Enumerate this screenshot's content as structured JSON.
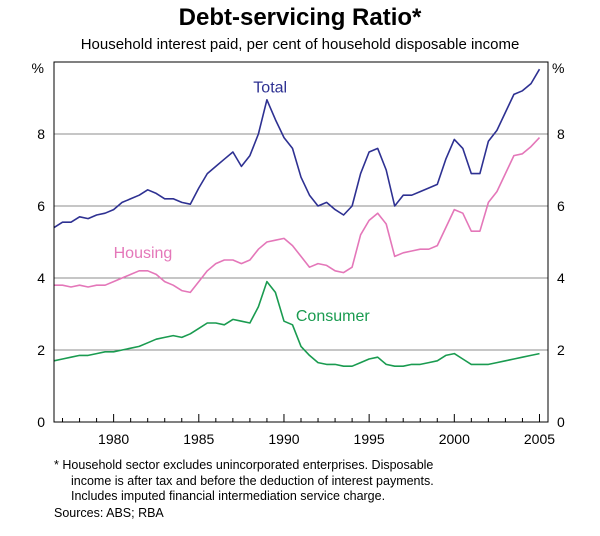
{
  "chart_data": {
    "type": "line",
    "title": "Debt-servicing Ratio*",
    "subtitle": "Household interest paid, per cent of household disposable income",
    "ylabel_left": "%",
    "ylabel_right": "%",
    "ylim": [
      0,
      10
    ],
    "yticks": [
      "0",
      "2",
      "4",
      "6",
      "8"
    ],
    "xlim": [
      1976.5,
      2005.5
    ],
    "xticks": [
      "1980",
      "1985",
      "1990",
      "1995",
      "2000",
      "2005"
    ],
    "grid": "horizontal",
    "series": [
      {
        "name": "Total",
        "color": "#2e3192",
        "points": [
          [
            1976.5,
            5.4
          ],
          [
            1977,
            5.55
          ],
          [
            1977.5,
            5.55
          ],
          [
            1978,
            5.7
          ],
          [
            1978.5,
            5.65
          ],
          [
            1979,
            5.75
          ],
          [
            1979.5,
            5.8
          ],
          [
            1980,
            5.9
          ],
          [
            1980.5,
            6.1
          ],
          [
            1981,
            6.2
          ],
          [
            1981.5,
            6.3
          ],
          [
            1982,
            6.45
          ],
          [
            1982.5,
            6.35
          ],
          [
            1983,
            6.2
          ],
          [
            1983.5,
            6.2
          ],
          [
            1984,
            6.1
          ],
          [
            1984.5,
            6.05
          ],
          [
            1985,
            6.5
          ],
          [
            1985.5,
            6.9
          ],
          [
            1986,
            7.1
          ],
          [
            1986.5,
            7.3
          ],
          [
            1987,
            7.5
          ],
          [
            1987.5,
            7.1
          ],
          [
            1988,
            7.4
          ],
          [
            1988.5,
            8.0
          ],
          [
            1989,
            8.95
          ],
          [
            1989.5,
            8.4
          ],
          [
            1990,
            7.9
          ],
          [
            1990.5,
            7.6
          ],
          [
            1991,
            6.8
          ],
          [
            1991.5,
            6.3
          ],
          [
            1992,
            6.0
          ],
          [
            1992.5,
            6.1
          ],
          [
            1993,
            5.9
          ],
          [
            1993.5,
            5.75
          ],
          [
            1994,
            6.0
          ],
          [
            1994.5,
            6.9
          ],
          [
            1995,
            7.5
          ],
          [
            1995.5,
            7.6
          ],
          [
            1996,
            7.0
          ],
          [
            1996.5,
            6.0
          ],
          [
            1997,
            6.3
          ],
          [
            1997.5,
            6.3
          ],
          [
            1998,
            6.4
          ],
          [
            1998.5,
            6.5
          ],
          [
            1999,
            6.6
          ],
          [
            1999.5,
            7.3
          ],
          [
            2000,
            7.85
          ],
          [
            2000.5,
            7.6
          ],
          [
            2001,
            6.9
          ],
          [
            2001.5,
            6.9
          ],
          [
            2002,
            7.8
          ],
          [
            2002.5,
            8.1
          ],
          [
            2003,
            8.6
          ],
          [
            2003.5,
            9.1
          ],
          [
            2004,
            9.2
          ],
          [
            2004.5,
            9.4
          ],
          [
            2005,
            9.8
          ]
        ]
      },
      {
        "name": "Housing",
        "color": "#e477b9",
        "points": [
          [
            1976.5,
            3.8
          ],
          [
            1977,
            3.8
          ],
          [
            1977.5,
            3.75
          ],
          [
            1978,
            3.8
          ],
          [
            1978.5,
            3.75
          ],
          [
            1979,
            3.8
          ],
          [
            1979.5,
            3.8
          ],
          [
            1980,
            3.9
          ],
          [
            1980.5,
            4.0
          ],
          [
            1981,
            4.1
          ],
          [
            1981.5,
            4.2
          ],
          [
            1982,
            4.2
          ],
          [
            1982.5,
            4.1
          ],
          [
            1983,
            3.9
          ],
          [
            1983.5,
            3.8
          ],
          [
            1984,
            3.65
          ],
          [
            1984.5,
            3.6
          ],
          [
            1985,
            3.9
          ],
          [
            1985.5,
            4.2
          ],
          [
            1986,
            4.4
          ],
          [
            1986.5,
            4.5
          ],
          [
            1987,
            4.5
          ],
          [
            1987.5,
            4.4
          ],
          [
            1988,
            4.5
          ],
          [
            1988.5,
            4.8
          ],
          [
            1989,
            5.0
          ],
          [
            1989.5,
            5.05
          ],
          [
            1990,
            5.1
          ],
          [
            1990.5,
            4.9
          ],
          [
            1991,
            4.6
          ],
          [
            1991.5,
            4.3
          ],
          [
            1992,
            4.4
          ],
          [
            1992.5,
            4.35
          ],
          [
            1993,
            4.2
          ],
          [
            1993.5,
            4.15
          ],
          [
            1994,
            4.3
          ],
          [
            1994.5,
            5.2
          ],
          [
            1995,
            5.6
          ],
          [
            1995.5,
            5.8
          ],
          [
            1996,
            5.5
          ],
          [
            1996.5,
            4.6
          ],
          [
            1997,
            4.7
          ],
          [
            1997.5,
            4.75
          ],
          [
            1998,
            4.8
          ],
          [
            1998.5,
            4.8
          ],
          [
            1999,
            4.9
          ],
          [
            1999.5,
            5.4
          ],
          [
            2000,
            5.9
          ],
          [
            2000.5,
            5.8
          ],
          [
            2001,
            5.3
          ],
          [
            2001.5,
            5.3
          ],
          [
            2002,
            6.1
          ],
          [
            2002.5,
            6.4
          ],
          [
            2003,
            6.9
          ],
          [
            2003.5,
            7.4
          ],
          [
            2004,
            7.45
          ],
          [
            2004.5,
            7.65
          ],
          [
            2005,
            7.9
          ]
        ]
      },
      {
        "name": "Consumer",
        "color": "#1a9b50",
        "points": [
          [
            1976.5,
            1.7
          ],
          [
            1977,
            1.75
          ],
          [
            1977.5,
            1.8
          ],
          [
            1978,
            1.85
          ],
          [
            1978.5,
            1.85
          ],
          [
            1979,
            1.9
          ],
          [
            1979.5,
            1.95
          ],
          [
            1980,
            1.95
          ],
          [
            1980.5,
            2.0
          ],
          [
            1981,
            2.05
          ],
          [
            1981.5,
            2.1
          ],
          [
            1982,
            2.2
          ],
          [
            1982.5,
            2.3
          ],
          [
            1983,
            2.35
          ],
          [
            1983.5,
            2.4
          ],
          [
            1984,
            2.35
          ],
          [
            1984.5,
            2.45
          ],
          [
            1985,
            2.6
          ],
          [
            1985.5,
            2.75
          ],
          [
            1986,
            2.75
          ],
          [
            1986.5,
            2.7
          ],
          [
            1987,
            2.85
          ],
          [
            1987.5,
            2.8
          ],
          [
            1988,
            2.75
          ],
          [
            1988.5,
            3.2
          ],
          [
            1989,
            3.9
          ],
          [
            1989.5,
            3.6
          ],
          [
            1990,
            2.8
          ],
          [
            1990.5,
            2.7
          ],
          [
            1991,
            2.1
          ],
          [
            1991.5,
            1.85
          ],
          [
            1992,
            1.65
          ],
          [
            1992.5,
            1.6
          ],
          [
            1993,
            1.6
          ],
          [
            1993.5,
            1.55
          ],
          [
            1994,
            1.55
          ],
          [
            1994.5,
            1.65
          ],
          [
            1995,
            1.75
          ],
          [
            1995.5,
            1.8
          ],
          [
            1996,
            1.6
          ],
          [
            1996.5,
            1.55
          ],
          [
            1997,
            1.55
          ],
          [
            1997.5,
            1.6
          ],
          [
            1998,
            1.6
          ],
          [
            1998.5,
            1.65
          ],
          [
            1999,
            1.7
          ],
          [
            1999.5,
            1.85
          ],
          [
            2000,
            1.9
          ],
          [
            2000.5,
            1.75
          ],
          [
            2001,
            1.6
          ],
          [
            2001.5,
            1.6
          ],
          [
            2002,
            1.6
          ],
          [
            2002.5,
            1.65
          ],
          [
            2003,
            1.7
          ],
          [
            2003.5,
            1.75
          ],
          [
            2004,
            1.8
          ],
          [
            2004.5,
            1.85
          ],
          [
            2005,
            1.9
          ]
        ]
      }
    ]
  },
  "footnote_lines": [
    "*  Household sector excludes unincorporated enterprises. Disposable",
    "income is after tax and before the deduction of interest payments.",
    "Includes imputed financial intermediation service charge."
  ],
  "sources": "Sources: ABS; RBA"
}
